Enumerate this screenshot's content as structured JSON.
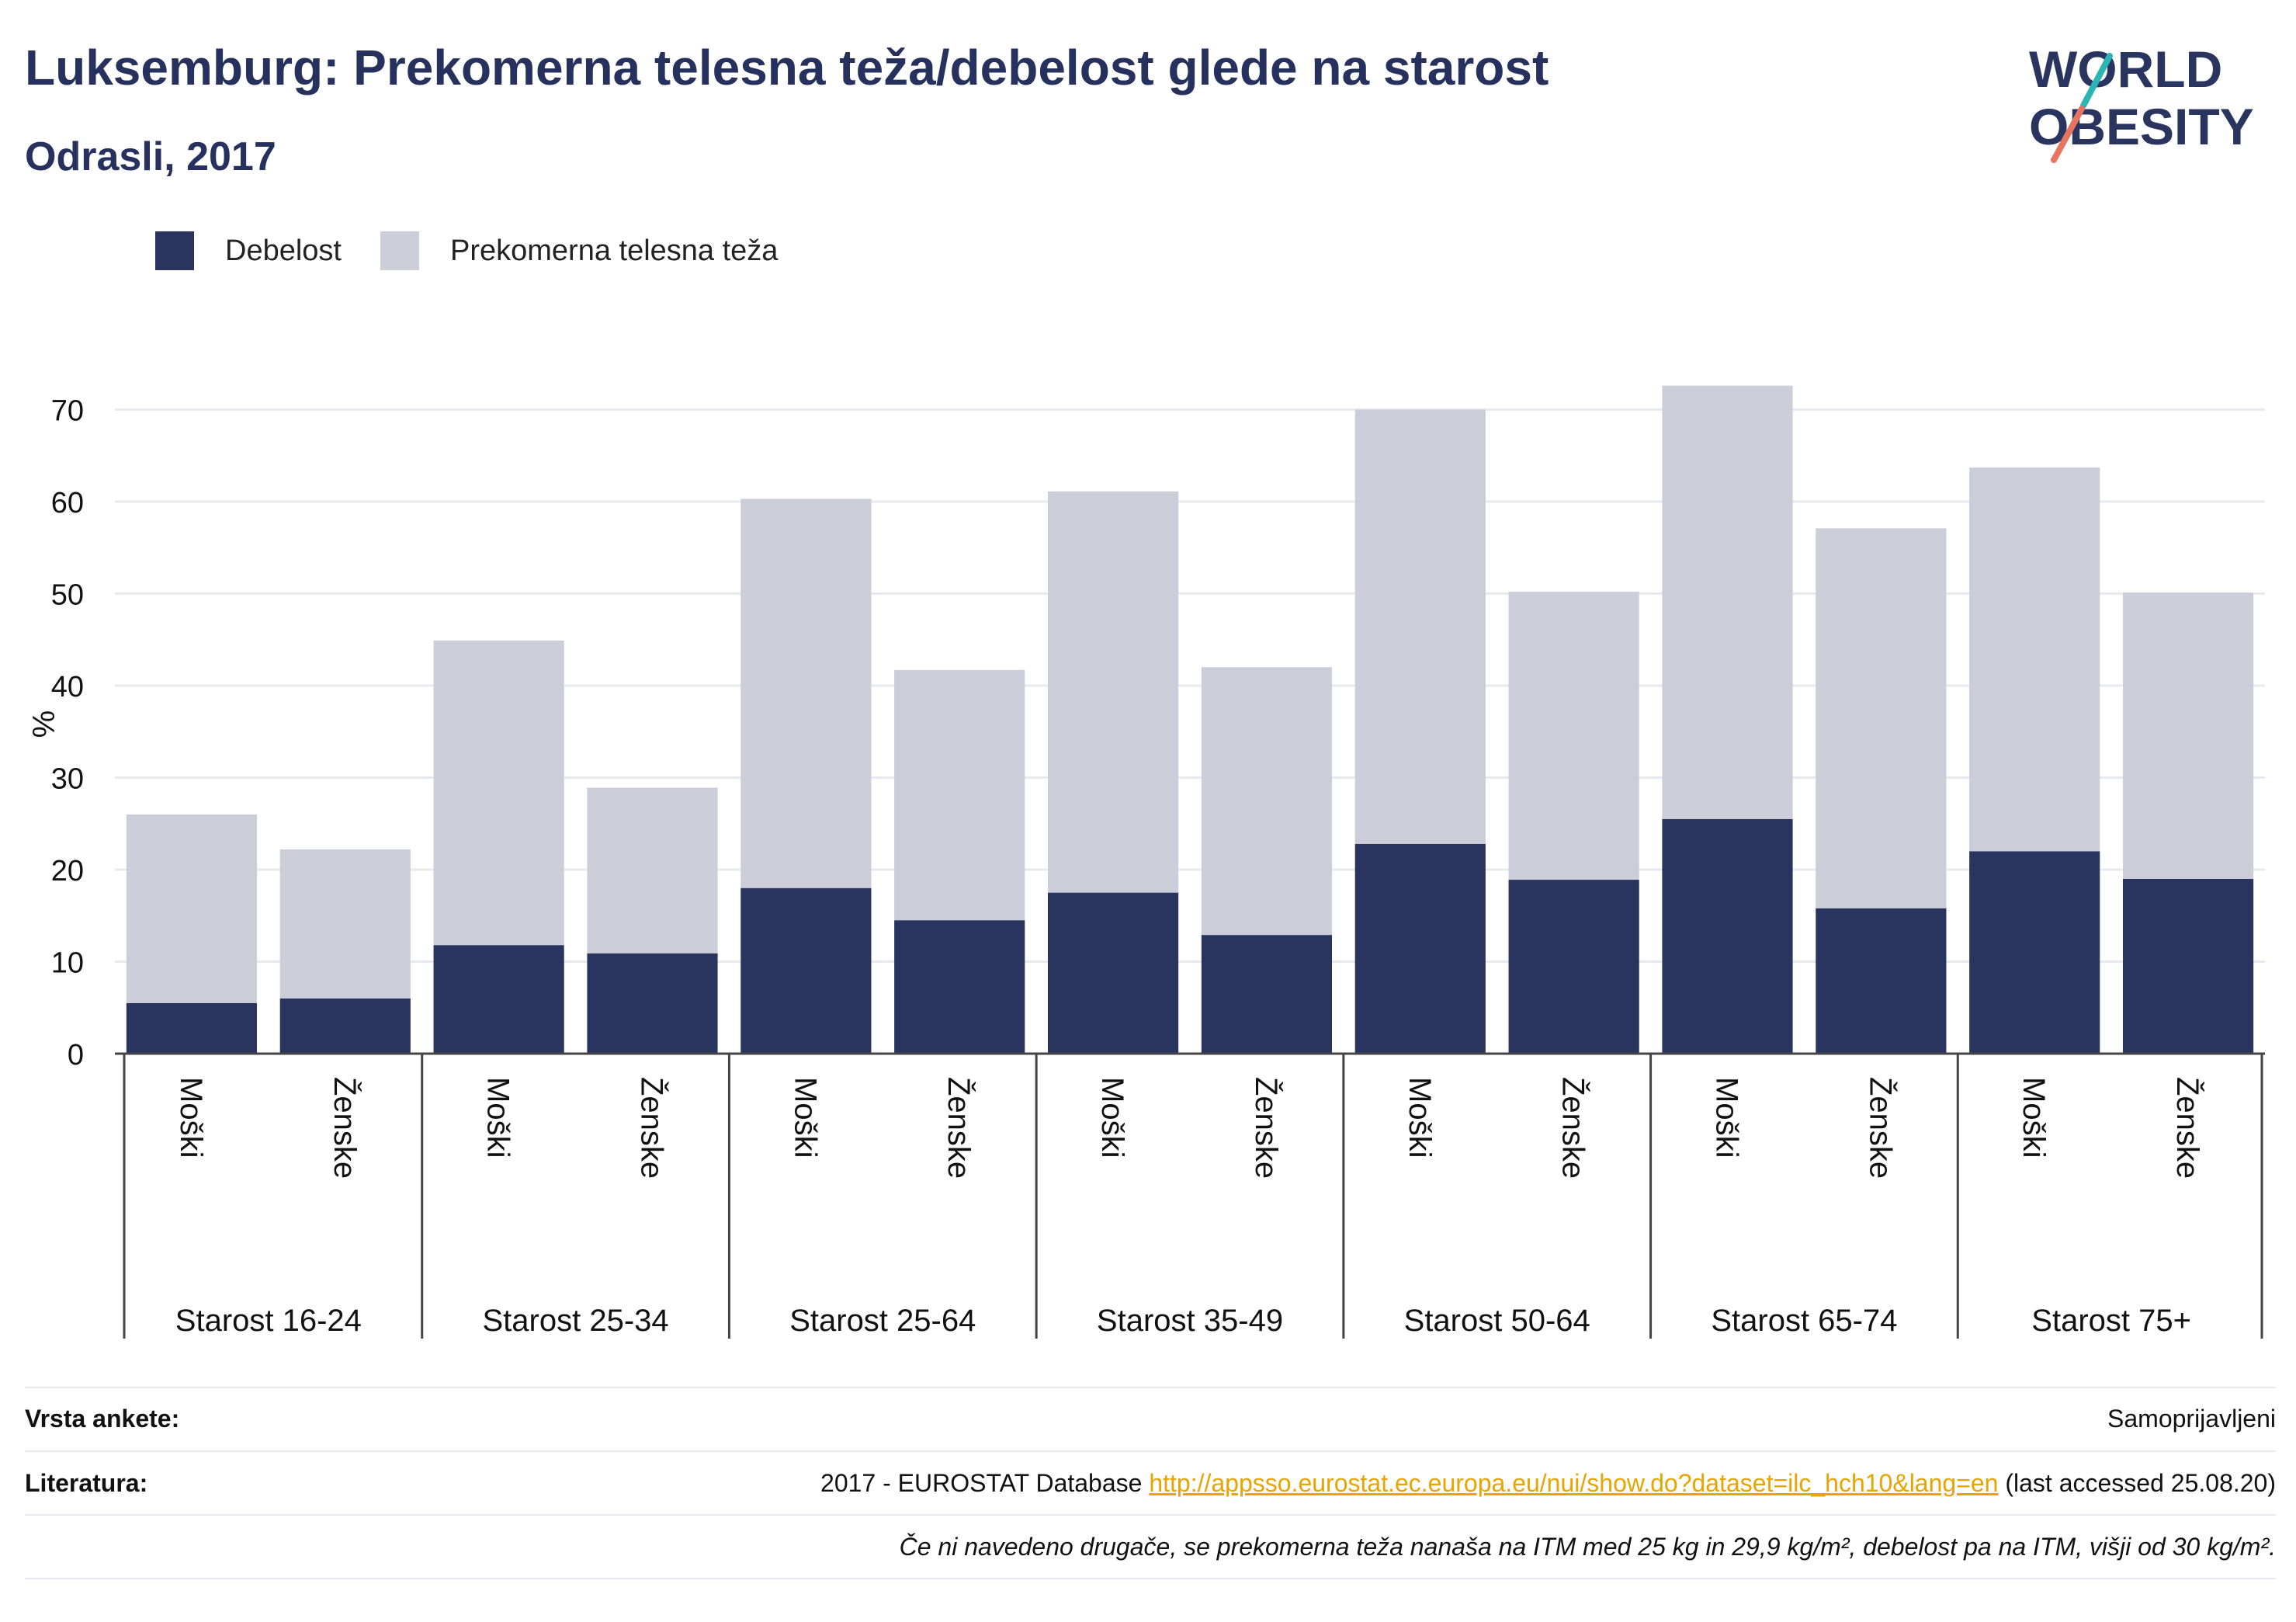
{
  "title": "Luksemburg: Prekomerna telesna teža/debelost glede na starost",
  "subtitle": "Odrasli, 2017",
  "logo": {
    "line1": "WORLD",
    "line2": "OBESITY"
  },
  "colors": {
    "obesity": "#29345f",
    "overweight": "#cbcdd8",
    "accent_teal": "#2bb5b5",
    "accent_coral": "#e8735f",
    "link": "#e8a400"
  },
  "chart_data": {
    "type": "bar",
    "stacked": true,
    "ylabel": "%",
    "ylim": [
      0,
      75
    ],
    "yticks": [
      0,
      10,
      20,
      30,
      40,
      50,
      60,
      70
    ],
    "grid": true,
    "legend_position": "top-left",
    "series": [
      {
        "name": "Debelost",
        "values": [
          5.5,
          6.0,
          11.8,
          10.9,
          18.0,
          14.5,
          17.5,
          12.9,
          22.8,
          18.9,
          25.5,
          15.8,
          22.0,
          19.0
        ]
      },
      {
        "name": "Prekomerna telesna teža",
        "values": [
          20.5,
          16.2,
          33.1,
          18.0,
          42.3,
          27.2,
          43.6,
          29.1,
          47.2,
          31.3,
          47.1,
          41.3,
          41.7,
          31.1
        ]
      }
    ],
    "bars": [
      {
        "sex": "Moški",
        "group": "Starost 16-24"
      },
      {
        "sex": "Ženske",
        "group": "Starost 16-24"
      },
      {
        "sex": "Moški",
        "group": "Starost 25-34"
      },
      {
        "sex": "Ženske",
        "group": "Starost 25-34"
      },
      {
        "sex": "Moški",
        "group": "Starost 25-64"
      },
      {
        "sex": "Ženske",
        "group": "Starost 25-64"
      },
      {
        "sex": "Moški",
        "group": "Starost 35-49"
      },
      {
        "sex": "Ženske",
        "group": "Starost 35-49"
      },
      {
        "sex": "Moški",
        "group": "Starost 50-64"
      },
      {
        "sex": "Ženske",
        "group": "Starost 50-64"
      },
      {
        "sex": "Moški",
        "group": "Starost 65-74"
      },
      {
        "sex": "Ženske",
        "group": "Starost 65-74"
      },
      {
        "sex": "Moški",
        "group": "Starost 75+"
      },
      {
        "sex": "Ženske",
        "group": "Starost 75+"
      }
    ],
    "groups": [
      "Starost 16-24",
      "Starost 25-34",
      "Starost 25-64",
      "Starost 35-49",
      "Starost 50-64",
      "Starost 65-74",
      "Starost 75+"
    ]
  },
  "footer": {
    "survey_label": "Vrsta ankete:",
    "survey_value": "Samoprijavljeni",
    "lit_label": "Literatura:",
    "lit_prefix": "2017 - EUROSTAT Database",
    "lit_link": "http://appsso.eurostat.ec.europa.eu/nui/show.do?dataset=ilc_hch10&lang=en",
    "lit_suffix": "(last accessed 25.08.20)",
    "note": "Če ni navedeno drugače, se prekomerna teža nanaša na ITM med 25 kg in 29,9 kg/m², debelost pa na ITM, višji od 30 kg/m²."
  }
}
